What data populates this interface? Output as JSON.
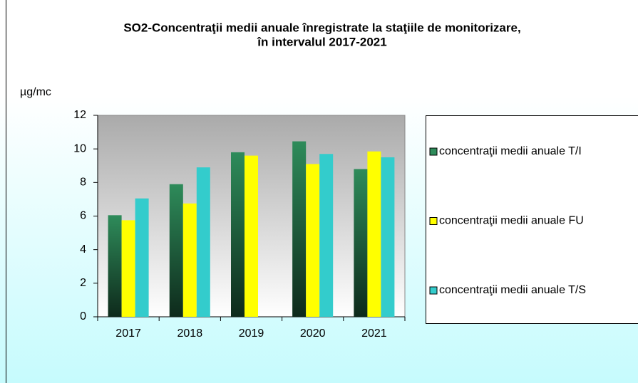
{
  "chart_data": {
    "type": "bar",
    "title": [
      "SO2-Concentraţii medii anuale înregistrate la staţiile de monitorizare,",
      "în intervalul 2017-2021"
    ],
    "y_label": "µg/mc",
    "categories": [
      "2017",
      "2018",
      "2019",
      "2020",
      "2021"
    ],
    "series": [
      {
        "name": "concentraţii medii anuale T/I",
        "color": "#2e8b5a",
        "values": [
          6.05,
          7.9,
          9.8,
          10.45,
          8.8
        ]
      },
      {
        "name": "concentraţii medii anuale FU",
        "color": "#ffff00",
        "values": [
          5.75,
          6.75,
          9.6,
          9.1,
          9.85
        ]
      },
      {
        "name": "concentraţii medii anuale T/S",
        "color": "#33cccc",
        "values": [
          7.05,
          8.9,
          null,
          9.7,
          9.5
        ]
      }
    ],
    "ylim": [
      0,
      12
    ],
    "yticks": [
      0,
      2,
      4,
      6,
      8,
      10,
      12
    ]
  }
}
